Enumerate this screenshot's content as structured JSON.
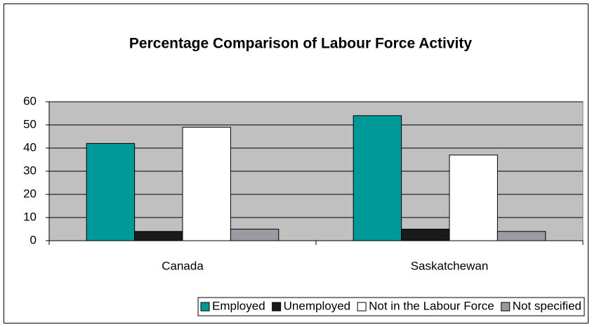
{
  "chart_data": {
    "type": "bar",
    "title": "Percentage Comparison of Labour Force Activity",
    "categories": [
      "Canada",
      "Saskatchewan"
    ],
    "series": [
      {
        "name": "Employed",
        "color": "#009999",
        "values": [
          42,
          54
        ]
      },
      {
        "name": "Unemployed",
        "color": "#1a1a1a",
        "values": [
          4,
          5
        ]
      },
      {
        "name": "Not in the Labour Force",
        "color": "#ffffff",
        "values": [
          49,
          37
        ]
      },
      {
        "name": "Not specified",
        "color": "#9a9aa2",
        "values": [
          5,
          4
        ]
      }
    ],
    "ylim": [
      0,
      60
    ],
    "yticks": [
      0,
      10,
      20,
      30,
      40,
      50,
      60
    ],
    "grid": true,
    "legend": "bottom"
  }
}
